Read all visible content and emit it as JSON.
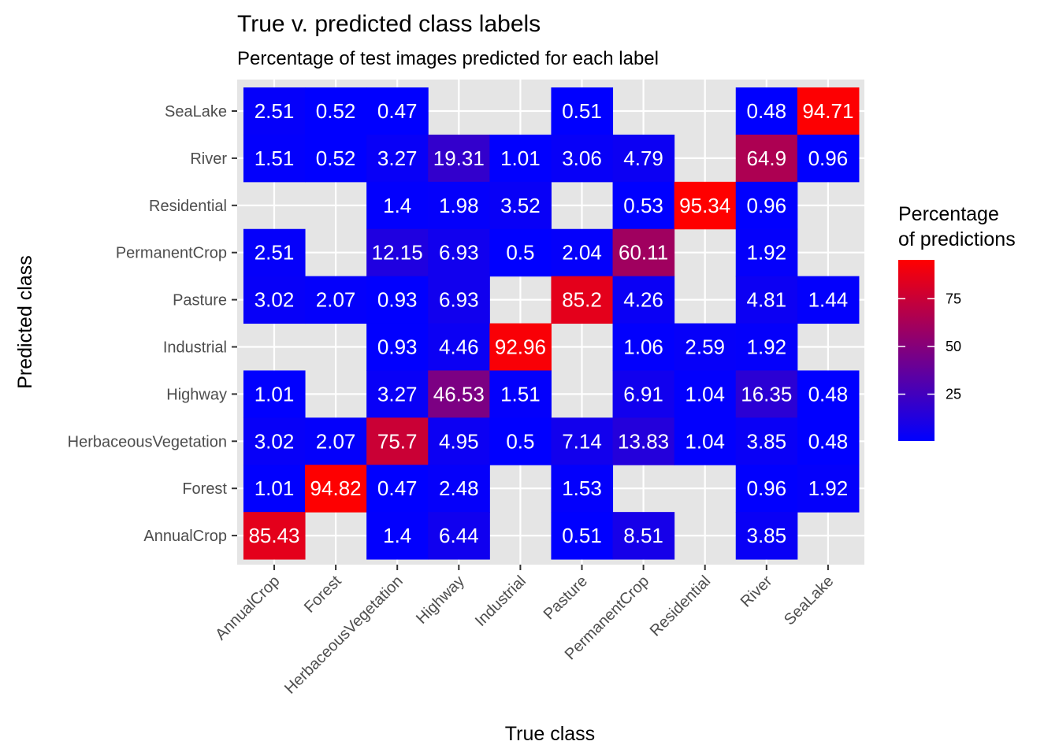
{
  "chart_data": {
    "type": "heatmap",
    "title": "True v. predicted class labels",
    "subtitle": "Percentage of test images predicted for each label",
    "xlabel": "True class",
    "ylabel": "Predicted class",
    "x_categories": [
      "AnnualCrop",
      "Forest",
      "HerbaceousVegetation",
      "Highway",
      "Industrial",
      "Pasture",
      "PermanentCrop",
      "Residential",
      "River",
      "SeaLake"
    ],
    "y_categories": [
      "AnnualCrop",
      "Forest",
      "HerbaceousVegetation",
      "Highway",
      "Industrial",
      "Pasture",
      "PermanentCrop",
      "Residential",
      "River",
      "SeaLake"
    ],
    "cells": [
      {
        "x": "AnnualCrop",
        "y": "SeaLake",
        "value": 2.51
      },
      {
        "x": "Forest",
        "y": "SeaLake",
        "value": 0.52
      },
      {
        "x": "HerbaceousVegetation",
        "y": "SeaLake",
        "value": 0.47
      },
      {
        "x": "Pasture",
        "y": "SeaLake",
        "value": 0.51
      },
      {
        "x": "River",
        "y": "SeaLake",
        "value": 0.48
      },
      {
        "x": "SeaLake",
        "y": "SeaLake",
        "value": 94.71
      },
      {
        "x": "AnnualCrop",
        "y": "River",
        "value": 1.51
      },
      {
        "x": "Forest",
        "y": "River",
        "value": 0.52
      },
      {
        "x": "HerbaceousVegetation",
        "y": "River",
        "value": 3.27
      },
      {
        "x": "Highway",
        "y": "River",
        "value": 19.31
      },
      {
        "x": "Industrial",
        "y": "River",
        "value": 1.01
      },
      {
        "x": "Pasture",
        "y": "River",
        "value": 3.06
      },
      {
        "x": "PermanentCrop",
        "y": "River",
        "value": 4.79
      },
      {
        "x": "River",
        "y": "River",
        "value": 64.9
      },
      {
        "x": "SeaLake",
        "y": "River",
        "value": 0.96
      },
      {
        "x": "HerbaceousVegetation",
        "y": "Residential",
        "value": 1.4
      },
      {
        "x": "Highway",
        "y": "Residential",
        "value": 1.98
      },
      {
        "x": "Industrial",
        "y": "Residential",
        "value": 3.52
      },
      {
        "x": "PermanentCrop",
        "y": "Residential",
        "value": 0.53
      },
      {
        "x": "Residential",
        "y": "Residential",
        "value": 95.34
      },
      {
        "x": "River",
        "y": "Residential",
        "value": 0.96
      },
      {
        "x": "AnnualCrop",
        "y": "PermanentCrop",
        "value": 2.51
      },
      {
        "x": "HerbaceousVegetation",
        "y": "PermanentCrop",
        "value": 12.15
      },
      {
        "x": "Highway",
        "y": "PermanentCrop",
        "value": 6.93
      },
      {
        "x": "Industrial",
        "y": "PermanentCrop",
        "value": 0.5
      },
      {
        "x": "Pasture",
        "y": "PermanentCrop",
        "value": 2.04
      },
      {
        "x": "PermanentCrop",
        "y": "PermanentCrop",
        "value": 60.11
      },
      {
        "x": "River",
        "y": "PermanentCrop",
        "value": 1.92
      },
      {
        "x": "AnnualCrop",
        "y": "Pasture",
        "value": 3.02
      },
      {
        "x": "Forest",
        "y": "Pasture",
        "value": 2.07
      },
      {
        "x": "HerbaceousVegetation",
        "y": "Pasture",
        "value": 0.93
      },
      {
        "x": "Highway",
        "y": "Pasture",
        "value": 6.93
      },
      {
        "x": "Pasture",
        "y": "Pasture",
        "value": 85.2
      },
      {
        "x": "PermanentCrop",
        "y": "Pasture",
        "value": 4.26
      },
      {
        "x": "River",
        "y": "Pasture",
        "value": 4.81
      },
      {
        "x": "SeaLake",
        "y": "Pasture",
        "value": 1.44
      },
      {
        "x": "HerbaceousVegetation",
        "y": "Industrial",
        "value": 0.93
      },
      {
        "x": "Highway",
        "y": "Industrial",
        "value": 4.46
      },
      {
        "x": "Industrial",
        "y": "Industrial",
        "value": 92.96
      },
      {
        "x": "PermanentCrop",
        "y": "Industrial",
        "value": 1.06
      },
      {
        "x": "Residential",
        "y": "Industrial",
        "value": 2.59
      },
      {
        "x": "River",
        "y": "Industrial",
        "value": 1.92
      },
      {
        "x": "AnnualCrop",
        "y": "Highway",
        "value": 1.01
      },
      {
        "x": "HerbaceousVegetation",
        "y": "Highway",
        "value": 3.27
      },
      {
        "x": "Highway",
        "y": "Highway",
        "value": 46.53
      },
      {
        "x": "Industrial",
        "y": "Highway",
        "value": 1.51
      },
      {
        "x": "PermanentCrop",
        "y": "Highway",
        "value": 6.91
      },
      {
        "x": "Residential",
        "y": "Highway",
        "value": 1.04
      },
      {
        "x": "River",
        "y": "Highway",
        "value": 16.35
      },
      {
        "x": "SeaLake",
        "y": "Highway",
        "value": 0.48
      },
      {
        "x": "AnnualCrop",
        "y": "HerbaceousVegetation",
        "value": 3.02
      },
      {
        "x": "Forest",
        "y": "HerbaceousVegetation",
        "value": 2.07
      },
      {
        "x": "HerbaceousVegetation",
        "y": "HerbaceousVegetation",
        "value": 75.7
      },
      {
        "x": "Highway",
        "y": "HerbaceousVegetation",
        "value": 4.95
      },
      {
        "x": "Industrial",
        "y": "HerbaceousVegetation",
        "value": 0.5
      },
      {
        "x": "Pasture",
        "y": "HerbaceousVegetation",
        "value": 7.14
      },
      {
        "x": "PermanentCrop",
        "y": "HerbaceousVegetation",
        "value": 13.83
      },
      {
        "x": "Residential",
        "y": "HerbaceousVegetation",
        "value": 1.04
      },
      {
        "x": "River",
        "y": "HerbaceousVegetation",
        "value": 3.85
      },
      {
        "x": "SeaLake",
        "y": "HerbaceousVegetation",
        "value": 0.48
      },
      {
        "x": "AnnualCrop",
        "y": "Forest",
        "value": 1.01
      },
      {
        "x": "Forest",
        "y": "Forest",
        "value": 94.82
      },
      {
        "x": "HerbaceousVegetation",
        "y": "Forest",
        "value": 0.47
      },
      {
        "x": "Highway",
        "y": "Forest",
        "value": 2.48
      },
      {
        "x": "Pasture",
        "y": "Forest",
        "value": 1.53
      },
      {
        "x": "River",
        "y": "Forest",
        "value": 0.96
      },
      {
        "x": "SeaLake",
        "y": "Forest",
        "value": 1.92
      },
      {
        "x": "AnnualCrop",
        "y": "AnnualCrop",
        "value": 85.43
      },
      {
        "x": "HerbaceousVegetation",
        "y": "AnnualCrop",
        "value": 1.4
      },
      {
        "x": "Highway",
        "y": "AnnualCrop",
        "value": 6.44
      },
      {
        "x": "Pasture",
        "y": "AnnualCrop",
        "value": 0.51
      },
      {
        "x": "PermanentCrop",
        "y": "AnnualCrop",
        "value": 8.51
      },
      {
        "x": "River",
        "y": "AnnualCrop",
        "value": 3.85
      }
    ],
    "legend": {
      "title_line1": "Percentage",
      "title_line2": "of predictions",
      "ticks": [
        25,
        50,
        75
      ],
      "min": 0.47,
      "max": 95.34,
      "color_low": "#0000ff",
      "color_high": "#ff0000"
    },
    "panel_background": "#e5e5e5",
    "grid_color": "#ffffff",
    "cell_text_color": "#ffffff",
    "grid": true
  }
}
